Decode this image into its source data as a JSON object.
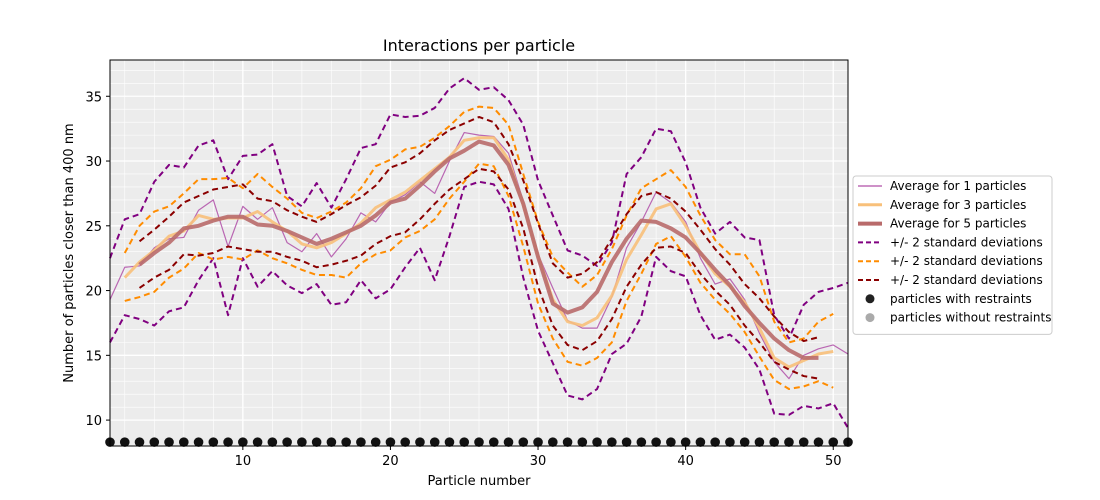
{
  "chart_data": {
    "type": "line",
    "title": "Interactions per particle",
    "xlabel": "Particle number",
    "ylabel": "Number of particles closer than 400 nm",
    "xlim": [
      1,
      51
    ],
    "ylim": [
      8,
      37.8
    ],
    "xticks": [
      10,
      20,
      30,
      40,
      50
    ],
    "yticks": [
      10,
      15,
      20,
      25,
      30,
      35
    ],
    "grid": true,
    "legend_position": "right",
    "series": [
      {
        "name": "Average for 1 particles",
        "color": "#b04fa8",
        "style": "solid",
        "x": [
          1,
          2,
          3,
          4,
          5,
          6,
          7,
          8,
          9,
          10,
          11,
          12,
          13,
          14,
          15,
          16,
          17,
          18,
          19,
          20,
          21,
          22,
          23,
          24,
          25,
          26,
          27,
          28,
          29,
          30,
          31,
          32,
          33,
          34,
          35,
          36,
          37,
          38,
          39,
          40,
          41,
          42,
          43,
          44,
          45,
          46,
          47,
          48,
          49,
          50,
          51
        ],
        "y": [
          19.3,
          21.8,
          21.9,
          23.3,
          24.0,
          24.1,
          26.2,
          27.0,
          23.4,
          26.5,
          25.5,
          26.4,
          23.7,
          23.0,
          24.4,
          22.6,
          24.0,
          26.0,
          25.3,
          26.8,
          27.4,
          28.4,
          27.5,
          30.0,
          32.2,
          32.0,
          31.9,
          30.6,
          26.9,
          22.8,
          20.2,
          17.7,
          17.1,
          17.1,
          19.5,
          23.3,
          25.3,
          27.6,
          26.8,
          25.3,
          22.5,
          20.5,
          20.9,
          19.3,
          16.7,
          14.5,
          13.2,
          15.0,
          15.5,
          15.8,
          15.1
        ]
      },
      {
        "name": "Average for 3 particles",
        "color": "#f8c07a",
        "style": "solid",
        "x": [
          2,
          3,
          4,
          5,
          6,
          7,
          8,
          9,
          10,
          11,
          12,
          13,
          14,
          15,
          16,
          17,
          18,
          19,
          20,
          21,
          22,
          23,
          24,
          25,
          26,
          27,
          28,
          29,
          30,
          31,
          32,
          33,
          34,
          35,
          36,
          37,
          38,
          39,
          40,
          41,
          42,
          43,
          44,
          45,
          46,
          47,
          48,
          49,
          50
        ],
        "y": [
          21.0,
          22.2,
          23.1,
          24.2,
          24.6,
          25.8,
          25.5,
          25.6,
          25.6,
          26.1,
          25.3,
          24.6,
          23.6,
          23.3,
          23.7,
          24.4,
          25.2,
          26.4,
          27.0,
          27.6,
          28.5,
          29.4,
          30.3,
          31.6,
          31.8,
          31.8,
          30.1,
          26.6,
          22.7,
          19.3,
          17.6,
          17.3,
          17.9,
          19.6,
          22.4,
          24.3,
          26.3,
          26.7,
          25.0,
          22.9,
          21.3,
          20.3,
          19.1,
          17.1,
          14.8,
          14.1,
          14.6,
          15.1,
          15.3
        ]
      },
      {
        "name": "Average for 5 particles",
        "color": "#b96b6b",
        "style": "solid",
        "x": [
          3,
          4,
          5,
          6,
          7,
          8,
          9,
          10,
          11,
          12,
          13,
          14,
          15,
          16,
          17,
          18,
          19,
          20,
          21,
          22,
          23,
          24,
          25,
          26,
          27,
          28,
          29,
          30,
          31,
          32,
          33,
          34,
          35,
          36,
          37,
          38,
          39,
          40,
          41,
          42,
          43,
          44,
          45,
          46,
          47,
          48,
          49
        ],
        "y": [
          22.0,
          22.9,
          23.7,
          24.8,
          25.0,
          25.4,
          25.7,
          25.7,
          25.1,
          25.0,
          24.6,
          24.1,
          23.6,
          24.0,
          24.5,
          25.0,
          25.8,
          26.8,
          27.1,
          28.1,
          29.2,
          30.2,
          30.8,
          31.5,
          31.2,
          29.7,
          26.7,
          22.6,
          19.0,
          18.3,
          18.7,
          19.9,
          22.2,
          24.0,
          25.4,
          25.3,
          24.8,
          24.1,
          22.9,
          21.6,
          20.4,
          18.8,
          17.5,
          16.3,
          15.4,
          14.8,
          14.8
        ]
      },
      {
        "name": "+/- 2 standard deviations",
        "color": "#800080",
        "style": "dashed",
        "x": [
          1,
          2,
          3,
          4,
          5,
          6,
          7,
          8,
          9,
          10,
          11,
          12,
          13,
          14,
          15,
          16,
          17,
          18,
          19,
          20,
          21,
          22,
          23,
          24,
          25,
          26,
          27,
          28,
          29,
          30,
          31,
          32,
          33,
          34,
          35,
          36,
          37,
          38,
          39,
          40,
          41,
          42,
          43,
          44,
          45,
          46,
          47,
          48,
          49,
          50,
          51
        ],
        "y": [
          22.5,
          25.5,
          25.9,
          28.4,
          29.7,
          29.5,
          31.2,
          31.6,
          28.6,
          30.4,
          30.5,
          31.3,
          27.3,
          26.5,
          28.3,
          26.4,
          28.6,
          31.0,
          31.3,
          33.6,
          33.4,
          33.5,
          34.1,
          35.6,
          36.4,
          35.5,
          35.7,
          34.7,
          32.8,
          28.5,
          25.8,
          23.1,
          22.7,
          21.9,
          23.7,
          29.0,
          30.3,
          32.5,
          32.3,
          29.9,
          26.4,
          24.4,
          25.3,
          24.1,
          23.9,
          18.1,
          16.3,
          18.9,
          19.9,
          20.2,
          20.6
        ]
      },
      {
        "name": "+/- 2 standard deviations",
        "color": "#800080",
        "style": "dashed",
        "x": [
          1,
          2,
          3,
          4,
          5,
          6,
          7,
          8,
          9,
          10,
          11,
          12,
          13,
          14,
          15,
          16,
          17,
          18,
          19,
          20,
          21,
          22,
          23,
          24,
          25,
          26,
          27,
          28,
          29,
          30,
          31,
          32,
          33,
          34,
          35,
          36,
          37,
          38,
          39,
          40,
          41,
          42,
          43,
          44,
          45,
          46,
          47,
          48,
          49,
          50,
          51
        ],
        "y": [
          16.0,
          18.1,
          17.8,
          17.3,
          18.4,
          18.7,
          20.8,
          22.5,
          18.1,
          22.5,
          20.3,
          21.5,
          20.4,
          19.8,
          20.5,
          18.9,
          19.1,
          20.8,
          19.4,
          20.1,
          21.8,
          23.3,
          20.8,
          24.2,
          28.0,
          28.4,
          28.2,
          26.3,
          21.0,
          16.9,
          14.4,
          11.9,
          11.6,
          12.4,
          15.1,
          15.9,
          18.0,
          22.6,
          21.5,
          21.1,
          18.1,
          16.2,
          16.6,
          15.6,
          13.9,
          10.5,
          10.4,
          11.1,
          10.9,
          11.3,
          9.4
        ]
      },
      {
        "name": "+/- 2 standard deviations",
        "color": "#ff8c00",
        "style": "dashed",
        "x": [
          2,
          3,
          4,
          5,
          6,
          7,
          8,
          9,
          10,
          11,
          12,
          13,
          14,
          15,
          16,
          17,
          18,
          19,
          20,
          21,
          22,
          23,
          24,
          25,
          26,
          27,
          28,
          29,
          30,
          31,
          32,
          33,
          34,
          35,
          36,
          37,
          38,
          39,
          40,
          41,
          42,
          43,
          44,
          45,
          46,
          47,
          48,
          49,
          50
        ],
        "y": [
          22.9,
          25.0,
          26.1,
          26.5,
          27.5,
          28.6,
          28.6,
          28.7,
          27.9,
          29.0,
          28.0,
          27.1,
          26.0,
          25.6,
          26.1,
          26.8,
          27.9,
          29.6,
          30.1,
          30.9,
          31.1,
          31.8,
          32.7,
          33.8,
          34.2,
          34.1,
          32.8,
          29.0,
          25.3,
          22.6,
          21.4,
          20.3,
          21.2,
          23.2,
          25.8,
          27.9,
          28.6,
          29.3,
          28.0,
          25.8,
          23.9,
          22.8,
          22.8,
          21.1,
          17.6,
          16.0,
          16.3,
          17.6,
          18.2
        ]
      },
      {
        "name": "+/- 2 standard deviations",
        "color": "#ff8c00",
        "style": "dashed",
        "x": [
          2,
          3,
          4,
          5,
          6,
          7,
          8,
          9,
          10,
          11,
          12,
          13,
          14,
          15,
          16,
          17,
          18,
          19,
          20,
          21,
          22,
          23,
          24,
          25,
          26,
          27,
          28,
          29,
          30,
          31,
          32,
          33,
          34,
          35,
          36,
          37,
          38,
          39,
          40,
          41,
          42,
          43,
          44,
          45,
          46,
          47,
          48,
          49,
          50
        ],
        "y": [
          19.2,
          19.5,
          19.9,
          21.0,
          21.7,
          22.9,
          22.4,
          22.6,
          22.4,
          23.1,
          22.5,
          22.1,
          21.6,
          21.2,
          21.2,
          21.0,
          22.1,
          22.8,
          23.1,
          24.1,
          24.6,
          25.5,
          27.1,
          28.4,
          29.8,
          29.6,
          27.3,
          23.4,
          19.0,
          16.3,
          14.5,
          14.2,
          14.8,
          16.0,
          19.2,
          21.3,
          23.6,
          24.2,
          22.6,
          20.6,
          19.3,
          18.2,
          16.8,
          14.9,
          13.1,
          12.4,
          12.6,
          13.0,
          12.5
        ]
      },
      {
        "name": "+/- 2 standard deviations",
        "color": "#8b0000",
        "style": "dashed",
        "x": [
          3,
          4,
          5,
          6,
          7,
          8,
          9,
          10,
          11,
          12,
          13,
          14,
          15,
          16,
          17,
          18,
          19,
          20,
          21,
          22,
          23,
          24,
          25,
          26,
          27,
          28,
          29,
          30,
          31,
          32,
          33,
          34,
          35,
          36,
          37,
          38,
          39,
          40,
          41,
          42,
          43,
          44,
          45,
          46,
          47,
          48,
          49
        ],
        "y": [
          23.8,
          24.7,
          25.7,
          26.8,
          27.3,
          27.8,
          28.0,
          28.2,
          27.1,
          26.9,
          26.2,
          25.7,
          25.3,
          25.9,
          26.6,
          27.2,
          28.1,
          29.5,
          29.9,
          30.6,
          31.6,
          32.4,
          32.9,
          33.4,
          33.0,
          31.3,
          28.5,
          25.2,
          22.1,
          21.0,
          21.3,
          22.2,
          24.0,
          25.9,
          27.3,
          27.6,
          27.1,
          26.1,
          24.7,
          23.2,
          22.0,
          20.5,
          19.4,
          18.0,
          16.8,
          16.1,
          16.4
        ]
      },
      {
        "name": "+/- 2 standard deviations",
        "color": "#8b0000",
        "style": "dashed",
        "x": [
          3,
          4,
          5,
          6,
          7,
          8,
          9,
          10,
          11,
          12,
          13,
          14,
          15,
          16,
          17,
          18,
          19,
          20,
          21,
          22,
          23,
          24,
          25,
          26,
          27,
          28,
          29,
          30,
          31,
          32,
          33,
          34,
          35,
          36,
          37,
          38,
          39,
          40,
          41,
          42,
          43,
          44,
          45,
          46,
          47,
          48,
          49
        ],
        "y": [
          20.2,
          21.0,
          21.6,
          22.8,
          22.7,
          22.9,
          23.4,
          23.2,
          23.0,
          23.0,
          22.6,
          22.3,
          21.8,
          22.0,
          22.3,
          22.7,
          23.6,
          24.2,
          24.5,
          25.5,
          26.7,
          27.8,
          28.6,
          29.4,
          29.2,
          27.8,
          24.8,
          20.3,
          17.3,
          15.8,
          15.4,
          16.1,
          17.8,
          20.3,
          22.0,
          23.3,
          23.4,
          22.9,
          21.3,
          20.0,
          18.9,
          17.3,
          16.0,
          14.5,
          13.9,
          13.4,
          13.2
        ]
      }
    ],
    "markers": {
      "y": 8.3,
      "x_restraints": [
        1,
        2,
        3,
        4,
        5,
        6,
        7,
        8,
        9,
        10,
        11,
        12,
        13,
        14,
        15,
        16,
        17,
        18,
        19,
        20,
        21,
        22,
        23,
        24,
        25,
        26,
        27,
        28,
        29,
        30,
        31,
        32,
        33,
        34,
        35,
        36,
        37,
        38,
        39,
        40,
        41,
        42,
        43,
        44,
        45,
        46,
        47,
        48,
        49,
        50,
        51
      ],
      "x_no_restraints": []
    },
    "legend": [
      {
        "label": "Average for 1 particles",
        "kind": "line",
        "color": "#b04fa8",
        "style": "solid",
        "width": 1.2
      },
      {
        "label": "Average for 3 particles",
        "kind": "line",
        "color": "#f8c07a",
        "style": "solid",
        "width": 3
      },
      {
        "label": "Average for 5 particles",
        "kind": "line",
        "color": "#b96b6b",
        "style": "solid",
        "width": 4
      },
      {
        "label": "+/- 2 standard deviations",
        "kind": "line",
        "color": "#800080",
        "style": "dashed",
        "width": 2
      },
      {
        "label": "+/- 2 standard deviations",
        "kind": "line",
        "color": "#ff8c00",
        "style": "dashed",
        "width": 2
      },
      {
        "label": "+/- 2 standard deviations",
        "kind": "line",
        "color": "#8b0000",
        "style": "dashed",
        "width": 2
      },
      {
        "label": "particles with restraints",
        "kind": "dot",
        "color": "#222222"
      },
      {
        "label": "particles without restraints",
        "kind": "dot",
        "color": "#aaaaaa"
      }
    ],
    "colors": {
      "plot_background": "#ececec",
      "grid": "#ffffff"
    }
  }
}
